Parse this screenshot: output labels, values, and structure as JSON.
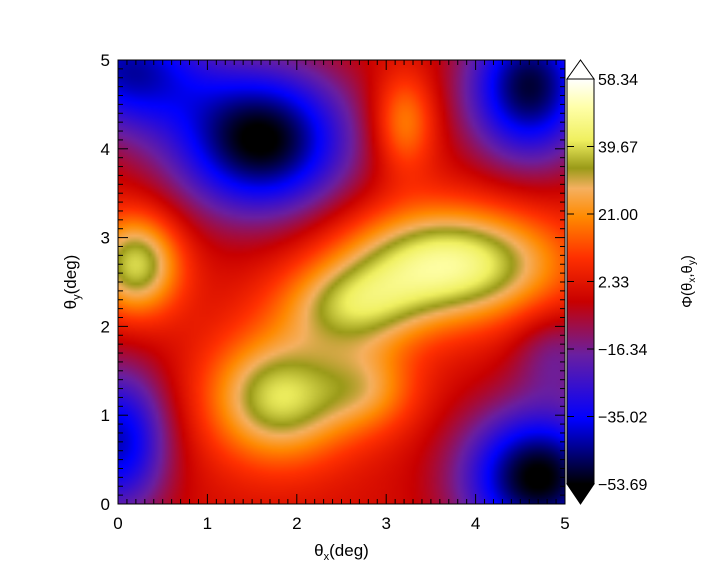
{
  "chart_data": {
    "type": "heatmap",
    "xlabel_symbol": "θ",
    "xlabel_sub": "x",
    "xlabel_unit": "(deg)",
    "ylabel_symbol": "θ",
    "ylabel_sub": "y",
    "ylabel_unit": "(deg)",
    "xlim": [
      0,
      5
    ],
    "ylim": [
      0,
      5
    ],
    "xticks": [
      0,
      1,
      2,
      3,
      4,
      5
    ],
    "yticks": [
      0,
      1,
      2,
      3,
      4,
      5
    ],
    "colorbar": {
      "label_prefix": "Φ(θ",
      "label_sub1": "x",
      "label_mid": ",θ",
      "label_sub2": "y",
      "label_suffix": ")",
      "min": -53.69,
      "max": 58.34,
      "ticks": [
        "58.34",
        "39.67",
        "21.00",
        "2.33",
        "−16.34",
        "−35.02",
        "−53.69"
      ],
      "extend": "both",
      "colormap": [
        [
          0.0,
          "#000000"
        ],
        [
          0.16,
          "#0000ff"
        ],
        [
          0.32,
          "#6a1fa0"
        ],
        [
          0.45,
          "#c80000"
        ],
        [
          0.56,
          "#ff3000"
        ],
        [
          0.66,
          "#ff8a00"
        ],
        [
          0.73,
          "#f5b060"
        ],
        [
          0.78,
          "#9a9a18"
        ],
        [
          0.85,
          "#f0f060"
        ],
        [
          0.93,
          "#ffffa8"
        ],
        [
          1.0,
          "#ffffff"
        ]
      ]
    },
    "field": {
      "description_type": "sum of gaussian components",
      "base": 0,
      "components": [
        {
          "x": 3.7,
          "y": 2.7,
          "sx": 0.85,
          "sy": 0.45,
          "amp": 48
        },
        {
          "x": 2.6,
          "y": 2.2,
          "sx": 0.55,
          "sy": 0.35,
          "amp": 28
        },
        {
          "x": 1.8,
          "y": 1.2,
          "sx": 0.55,
          "sy": 0.5,
          "amp": 40
        },
        {
          "x": 2.8,
          "y": 1.3,
          "sx": 0.4,
          "sy": 0.35,
          "amp": 20
        },
        {
          "x": 0.2,
          "y": 2.7,
          "sx": 0.35,
          "sy": 0.4,
          "amp": 40
        },
        {
          "x": 3.2,
          "y": 4.3,
          "sx": 0.25,
          "sy": 0.4,
          "amp": 22
        },
        {
          "x": 1.6,
          "y": 4.1,
          "sx": 0.7,
          "sy": 0.6,
          "amp": -55
        },
        {
          "x": 0.1,
          "y": 4.9,
          "sx": 0.6,
          "sy": 0.5,
          "amp": -40
        },
        {
          "x": 4.6,
          "y": 4.7,
          "sx": 0.5,
          "sy": 0.6,
          "amp": -50
        },
        {
          "x": 4.7,
          "y": 0.3,
          "sx": 0.6,
          "sy": 0.55,
          "amp": -55
        },
        {
          "x": 0.0,
          "y": 0.7,
          "sx": 0.4,
          "sy": 0.6,
          "amp": -40
        },
        {
          "x": 4.9,
          "y": 1.7,
          "sx": 0.35,
          "sy": 0.35,
          "amp": -15
        }
      ]
    }
  }
}
